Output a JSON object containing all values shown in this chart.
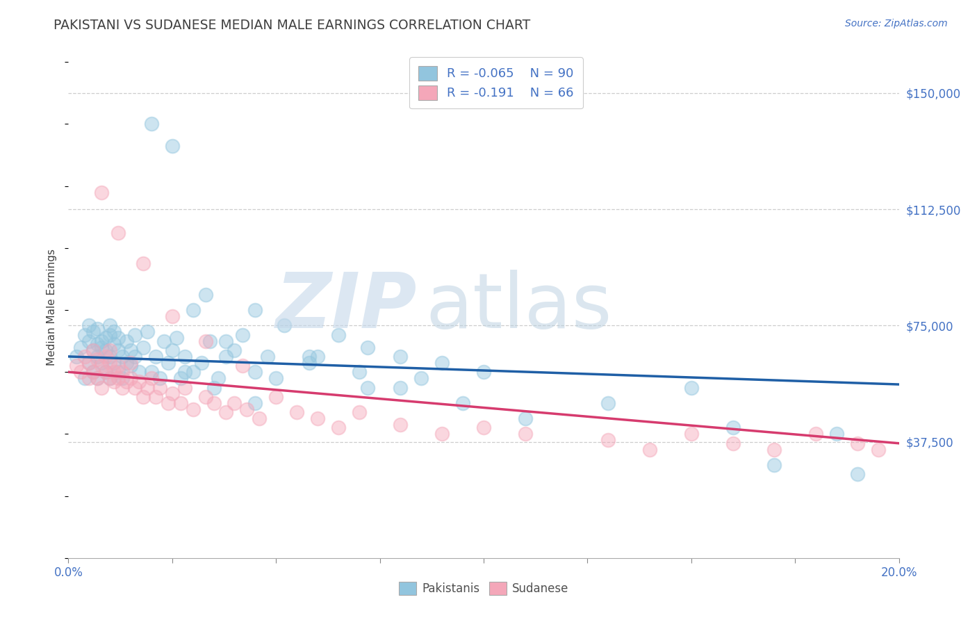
{
  "title": "PAKISTANI VS SUDANESE MEDIAN MALE EARNINGS CORRELATION CHART",
  "source": "Source: ZipAtlas.com",
  "xlim": [
    0.0,
    0.2
  ],
  "ylim": [
    0,
    162000
  ],
  "ytick_vals": [
    37500,
    75000,
    112500,
    150000
  ],
  "ytick_labels": [
    "$37,500",
    "$75,000",
    "$112,500",
    "$150,000"
  ],
  "xtick_vals": [
    0.0,
    0.025,
    0.05,
    0.075,
    0.1,
    0.125,
    0.15,
    0.175,
    0.2
  ],
  "xtick_labels": [
    "0.0%",
    "",
    "",
    "",
    "",
    "",
    "",
    "",
    "20.0%"
  ],
  "blue_color": "#92c5de",
  "pink_color": "#f4a7b9",
  "blue_line_color": "#1f5fa6",
  "pink_line_color": "#d63b6e",
  "background_color": "#ffffff",
  "grid_color": "#c8c8c8",
  "legend_r_blue": "R = -0.065",
  "legend_n_blue": "N = 90",
  "legend_r_pink": "R = -0.191",
  "legend_n_pink": "N = 66",
  "text_color": "#4472c4",
  "title_color": "#404040",
  "source_color": "#4472c4",
  "watermark_zip_color": "#c5d8ea",
  "watermark_atlas_color": "#b8cfe0",
  "pak_x": [
    0.002,
    0.003,
    0.004,
    0.004,
    0.005,
    0.005,
    0.005,
    0.006,
    0.006,
    0.006,
    0.007,
    0.007,
    0.007,
    0.007,
    0.008,
    0.008,
    0.008,
    0.009,
    0.009,
    0.009,
    0.01,
    0.01,
    0.01,
    0.01,
    0.011,
    0.011,
    0.011,
    0.012,
    0.012,
    0.012,
    0.013,
    0.013,
    0.014,
    0.014,
    0.015,
    0.015,
    0.016,
    0.016,
    0.017,
    0.018,
    0.019,
    0.02,
    0.021,
    0.022,
    0.023,
    0.024,
    0.025,
    0.026,
    0.027,
    0.028,
    0.03,
    0.032,
    0.034,
    0.036,
    0.038,
    0.04,
    0.042,
    0.045,
    0.048,
    0.05,
    0.033,
    0.038,
    0.045,
    0.052,
    0.058,
    0.065,
    0.072,
    0.08,
    0.09,
    0.1,
    0.028,
    0.035,
    0.045,
    0.058,
    0.072,
    0.085,
    0.095,
    0.11,
    0.15,
    0.19,
    0.02,
    0.025,
    0.03,
    0.06,
    0.07,
    0.08,
    0.13,
    0.16,
    0.17,
    0.185
  ],
  "pak_y": [
    65000,
    68000,
    72000,
    58000,
    70000,
    63000,
    75000,
    67000,
    73000,
    60000,
    65000,
    69000,
    74000,
    58000,
    70000,
    63000,
    68000,
    71000,
    60000,
    67000,
    65000,
    72000,
    58000,
    75000,
    63000,
    69000,
    73000,
    60000,
    67000,
    71000,
    65000,
    58000,
    63000,
    70000,
    67000,
    62000,
    65000,
    72000,
    60000,
    68000,
    73000,
    60000,
    65000,
    58000,
    70000,
    63000,
    67000,
    71000,
    58000,
    65000,
    60000,
    63000,
    70000,
    58000,
    65000,
    67000,
    72000,
    60000,
    65000,
    58000,
    85000,
    70000,
    80000,
    75000,
    65000,
    72000,
    68000,
    65000,
    63000,
    60000,
    60000,
    55000,
    50000,
    63000,
    55000,
    58000,
    50000,
    45000,
    55000,
    27000,
    140000,
    133000,
    80000,
    65000,
    60000,
    55000,
    50000,
    42000,
    30000,
    40000
  ],
  "sud_x": [
    0.002,
    0.003,
    0.004,
    0.005,
    0.005,
    0.006,
    0.006,
    0.007,
    0.007,
    0.008,
    0.008,
    0.009,
    0.009,
    0.01,
    0.01,
    0.01,
    0.011,
    0.011,
    0.012,
    0.012,
    0.013,
    0.013,
    0.014,
    0.015,
    0.015,
    0.016,
    0.017,
    0.018,
    0.019,
    0.02,
    0.021,
    0.022,
    0.024,
    0.025,
    0.027,
    0.028,
    0.03,
    0.033,
    0.035,
    0.038,
    0.04,
    0.043,
    0.046,
    0.05,
    0.055,
    0.06,
    0.065,
    0.07,
    0.08,
    0.09,
    0.1,
    0.11,
    0.13,
    0.14,
    0.15,
    0.16,
    0.17,
    0.18,
    0.19,
    0.195,
    0.008,
    0.012,
    0.018,
    0.025,
    0.033,
    0.042
  ],
  "sud_y": [
    62000,
    60000,
    65000,
    58000,
    63000,
    67000,
    60000,
    64000,
    58000,
    62000,
    55000,
    60000,
    65000,
    58000,
    63000,
    67000,
    60000,
    57000,
    62000,
    58000,
    55000,
    60000,
    57000,
    63000,
    58000,
    55000,
    57000,
    52000,
    55000,
    58000,
    52000,
    55000,
    50000,
    53000,
    50000,
    55000,
    48000,
    52000,
    50000,
    47000,
    50000,
    48000,
    45000,
    52000,
    47000,
    45000,
    42000,
    47000,
    43000,
    40000,
    42000,
    40000,
    38000,
    35000,
    40000,
    37000,
    35000,
    40000,
    37000,
    35000,
    118000,
    105000,
    95000,
    78000,
    70000,
    62000
  ]
}
